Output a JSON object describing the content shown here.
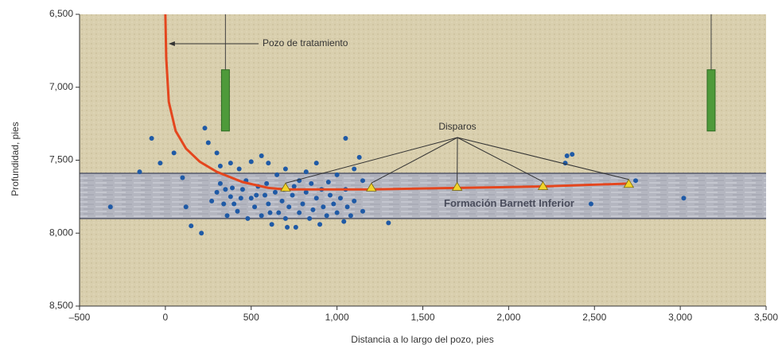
{
  "chart_data": {
    "type": "scatter",
    "xlabel": "Distancia a lo largo del pozo, pies",
    "ylabel": "Profundidad, pies",
    "xlim": [
      -500,
      3500
    ],
    "ylim": [
      6500,
      8500
    ],
    "y_inverted": true,
    "xticks": [
      {
        "value": -500,
        "label": "–500"
      },
      0,
      500,
      {
        "value": 1000,
        "label": "1,000"
      },
      {
        "value": 1500,
        "label": "1,500"
      },
      {
        "value": 2000,
        "label": "2,000"
      },
      {
        "value": 2500,
        "label": "2,500"
      },
      {
        "value": 3000,
        "label": "3,000"
      },
      {
        "value": 3500,
        "label": "3,500"
      }
    ],
    "yticks": [
      {
        "value": 6500,
        "label": "6,500"
      },
      {
        "value": 7000,
        "label": "7,000"
      },
      {
        "value": 7500,
        "label": "7,500"
      },
      {
        "value": 8000,
        "label": "8,000"
      },
      {
        "value": 8500,
        "label": "8,500"
      }
    ],
    "color": "#1f5aa6",
    "x": [
      -320,
      -150,
      -80,
      -30,
      50,
      100,
      120,
      150,
      230,
      250,
      210,
      300,
      320,
      380,
      430,
      500,
      560,
      600,
      650,
      700,
      780,
      820,
      1000,
      1050,
      1100,
      1150,
      1150,
      1300,
      1050,
      1130,
      2340,
      2370,
      2330,
      2480,
      2740,
      3020,
      880,
      950,
      320,
      350,
      380,
      400,
      420,
      450,
      480,
      500,
      520,
      540,
      560,
      580,
      600,
      620,
      640,
      660,
      680,
      700,
      720,
      740,
      760,
      780,
      800,
      820,
      840,
      860,
      880,
      900,
      920,
      940,
      960,
      980,
      1000,
      1020,
      1040,
      1060,
      1080,
      1100,
      340,
      360,
      440,
      470,
      530,
      590,
      690,
      750,
      850,
      910,
      710,
      610,
      390,
      300,
      270
    ],
    "y": [
      7820,
      7580,
      7350,
      7520,
      7450,
      7620,
      7820,
      7950,
      7280,
      7380,
      8000,
      7450,
      7540,
      7520,
      7560,
      7510,
      7470,
      7520,
      7600,
      7560,
      7640,
      7580,
      7600,
      7700,
      7560,
      7640,
      7850,
      7930,
      7350,
      7480,
      7470,
      7460,
      7520,
      7800,
      7640,
      7760,
      7520,
      7650,
      7660,
      7700,
      7750,
      7800,
      7850,
      7700,
      7900,
      7760,
      7820,
      7680,
      7880,
      7740,
      7800,
      7940,
      7720,
      7860,
      7780,
      7900,
      7820,
      7740,
      7960,
      7860,
      7800,
      7720,
      7900,
      7840,
      7760,
      7940,
      7820,
      7880,
      7740,
      7800,
      7860,
      7760,
      7920,
      7820,
      7880,
      7780,
      7800,
      7880,
      7760,
      7640,
      7740,
      7660,
      7700,
      7680,
      7660,
      7700,
      7960,
      7860,
      7690,
      7720,
      7780
    ],
    "well": {
      "color": "#e4461e",
      "x": [
        0,
        5,
        20,
        60,
        120,
        200,
        300,
        450,
        600,
        700,
        1200,
        1700,
        2200,
        2700
      ],
      "y": [
        6500,
        6800,
        7100,
        7300,
        7420,
        7510,
        7580,
        7650,
        7690,
        7700,
        7700,
        7690,
        7680,
        7660
      ]
    },
    "perforations": {
      "color": "#f2d32a",
      "x": [
        700,
        1200,
        1700,
        2200,
        2700
      ],
      "y": [
        7690,
        7690,
        7685,
        7680,
        7665
      ]
    },
    "formation": {
      "label": "Formación Barnett Inferior",
      "top": 7590,
      "bottom": 7900
    },
    "monitor_wells": [
      {
        "x": 350,
        "array_top": 6880,
        "array_bottom": 7300,
        "color": "#4e9a3a"
      },
      {
        "x": 3180,
        "array_top": 6880,
        "array_bottom": 7300,
        "color": "#4e9a3a"
      }
    ],
    "annotations": {
      "well": "Pozo de tratamiento",
      "perforations": "Disparos"
    }
  }
}
